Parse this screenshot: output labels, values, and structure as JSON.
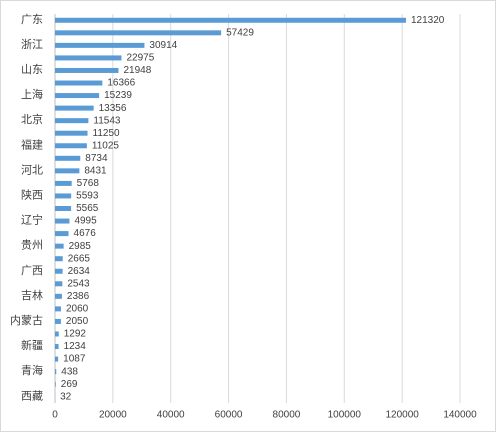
{
  "chart_data": {
    "type": "barh",
    "categories": [
      "广东",
      null,
      "浙江",
      null,
      "山东",
      null,
      "上海",
      null,
      "北京",
      null,
      "福建",
      null,
      "河北",
      null,
      "陕西",
      null,
      "辽宁",
      null,
      "贵州",
      null,
      "广西",
      null,
      "吉林",
      null,
      "内蒙古",
      null,
      "新疆",
      null,
      "青海",
      null,
      "西藏"
    ],
    "values": [
      121320,
      57429,
      30914,
      22975,
      21948,
      16366,
      15239,
      13356,
      11543,
      11250,
      11025,
      8734,
      8431,
      5768,
      5593,
      5565,
      4995,
      4676,
      2985,
      2665,
      2634,
      2543,
      2386,
      2060,
      2050,
      1292,
      1234,
      1087,
      438,
      269,
      32
    ],
    "color": "#5b9bd5",
    "xlim": [
      0,
      140000
    ],
    "xticks": [
      0,
      20000,
      40000,
      60000,
      80000,
      100000,
      120000,
      140000
    ],
    "grid": true
  }
}
